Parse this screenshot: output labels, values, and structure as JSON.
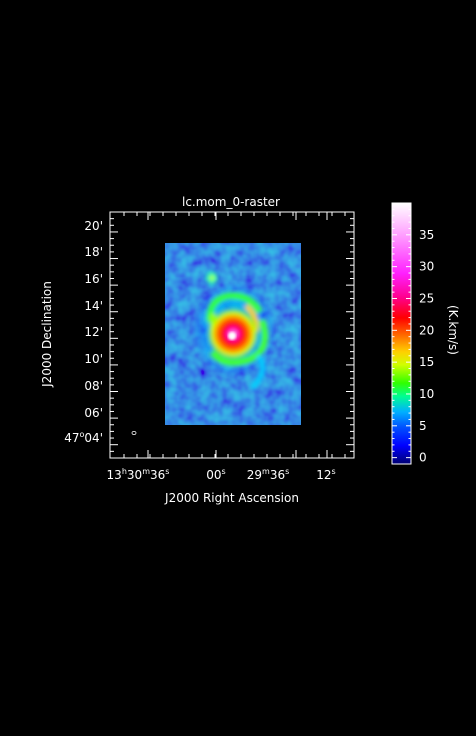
{
  "chart_data": {
    "type": "heatmap",
    "title": "lc.mom_0-raster",
    "xlabel": "J2000 Right Ascension",
    "ylabel": "J2000 Declination",
    "x_ticks": [
      {
        "h": "13",
        "m": "30",
        "s": "36"
      },
      {
        "s": "00"
      },
      {
        "m": "29",
        "s": "36"
      },
      {
        "s": "12"
      }
    ],
    "y_ticks": [
      {
        "d": "47",
        "m": "04'"
      },
      {
        "m": "06'"
      },
      {
        "m": "08'"
      },
      {
        "m": "10'"
      },
      {
        "m": "12'"
      },
      {
        "m": "14'"
      },
      {
        "m": "16'"
      },
      {
        "m": "18'"
      },
      {
        "m": "20'"
      }
    ],
    "y_range_arcmin": [
      3.0,
      21.5
    ],
    "colorbar": {
      "label": "(K.km/s)",
      "range": [
        -1,
        40
      ],
      "ticks": [
        0,
        5,
        10,
        15,
        20,
        25,
        30,
        35
      ],
      "colormap": [
        "#000080",
        "#0000ff",
        "#0080ff",
        "#00ff80",
        "#ffff00",
        "#ff8000",
        "#ff0000",
        "#ff00ff",
        "#ffb0ff",
        "#ffffff"
      ]
    },
    "map": {
      "background_value": 2.5,
      "peak_value": 38,
      "peak_dec_arcmin": 11.4,
      "features": [
        "central bulge",
        "spiral arms",
        "companion to north (~15' dec)"
      ]
    }
  }
}
